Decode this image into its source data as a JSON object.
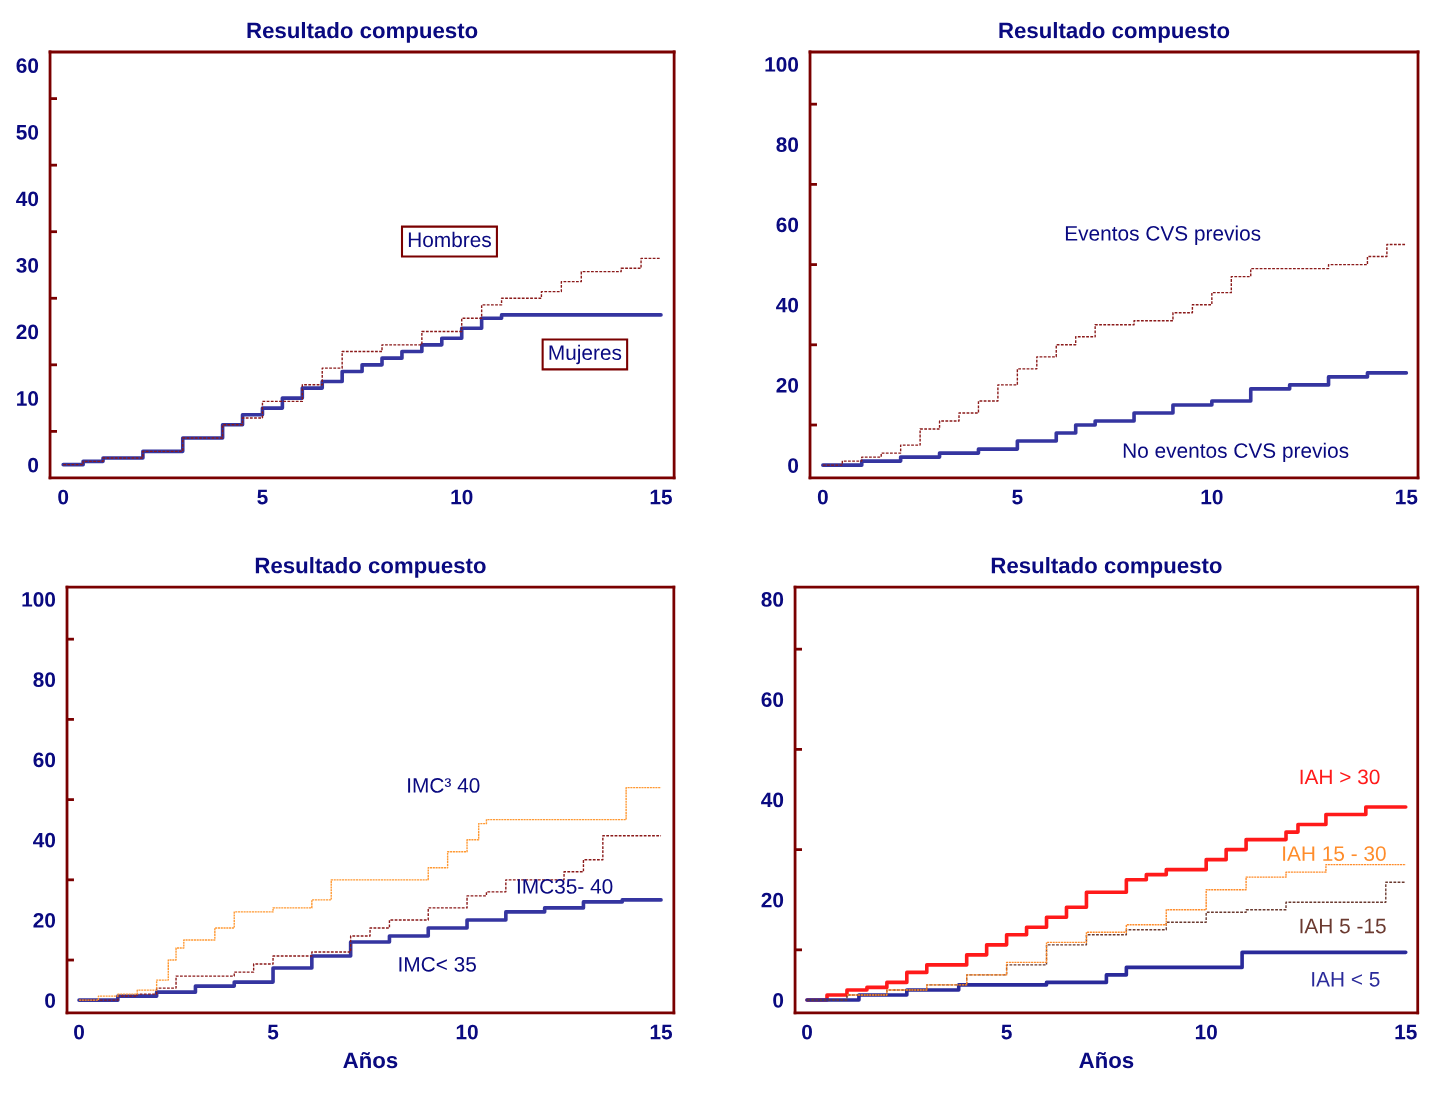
{
  "chart_data": [
    {
      "type": "step",
      "title": "Resultado compuesto",
      "xlim": [
        -0.33,
        15.33
      ],
      "xticks": [
        0,
        5,
        10,
        15
      ],
      "ylim": [
        -2,
        62
      ],
      "yticks": [
        0,
        {
          "value": 5,
          "label": null
        },
        10,
        {
          "value": 15,
          "label": null
        },
        20,
        {
          "value": 25,
          "label": null
        },
        30,
        {
          "value": 35,
          "label": null
        },
        40,
        {
          "value": 45,
          "label": null
        },
        50,
        {
          "value": 55,
          "label": null
        },
        60
      ],
      "series": [
        {
          "name": "Hombres",
          "color": "#8b1a1a",
          "line_style": "dashed",
          "x": [
            0,
            0.5,
            1,
            2,
            3,
            4,
            4.5,
            5,
            6,
            6.5,
            7,
            8,
            9,
            10,
            10.5,
            11,
            12,
            12.5,
            13,
            14,
            14.5,
            15
          ],
          "values": [
            0,
            0.5,
            1,
            2,
            4,
            6,
            7,
            9.5,
            12,
            14.5,
            17,
            18,
            20,
            22,
            24,
            25,
            26,
            27.5,
            29,
            29.5,
            31,
            31
          ]
        },
        {
          "name": "Mujeres",
          "color": "#3535a0",
          "line_style": "solid",
          "x": [
            0,
            0.5,
            1,
            2,
            3,
            4,
            4.5,
            5,
            5.5,
            6,
            6.5,
            7,
            7.5,
            8,
            8.5,
            9,
            9.5,
            10,
            10.5,
            11,
            15
          ],
          "values": [
            0,
            0.5,
            1,
            2,
            4,
            6,
            7.5,
            8.5,
            10,
            11.5,
            12.5,
            14,
            15,
            16,
            17,
            18,
            19,
            20.5,
            22,
            22.5,
            22.5
          ]
        }
      ]
    },
    {
      "type": "step",
      "title": "Resultado compuesto",
      "xlim": [
        -0.33,
        15.3
      ],
      "xticks": [
        0,
        5,
        10,
        15
      ],
      "ylim": [
        -3.2,
        103
      ],
      "yticks": [
        0,
        {
          "value": 10,
          "label": null
        },
        20,
        {
          "value": 30,
          "label": null
        },
        40,
        {
          "value": 50,
          "label": null
        },
        60,
        {
          "value": 70,
          "label": null
        },
        80,
        {
          "value": 90,
          "label": null
        },
        100
      ],
      "series": [
        {
          "name": "Eventos CVS previos",
          "color": "#8b1a1a",
          "line_style": "dashed",
          "x": [
            0,
            0.5,
            1,
            1.5,
            2,
            2.5,
            3,
            3.5,
            4,
            4.5,
            5,
            5.5,
            6,
            6.5,
            7,
            8,
            9,
            9.5,
            10,
            10.5,
            11,
            13,
            14,
            14.5,
            15
          ],
          "values": [
            0,
            1,
            2,
            3,
            5,
            9,
            11,
            13,
            16,
            20,
            24,
            27,
            30,
            32,
            35,
            36,
            38,
            40,
            43,
            47,
            49,
            50,
            52,
            55,
            55
          ]
        },
        {
          "name": "No eventos CVS previos",
          "color": "#3535a0",
          "line_style": "solid",
          "x": [
            0,
            1,
            2,
            3,
            4,
            5,
            6,
            6.5,
            7,
            8,
            9,
            10,
            11,
            12,
            13,
            14,
            15
          ],
          "values": [
            0,
            1,
            2,
            3,
            4,
            6,
            8,
            10,
            11,
            13,
            15,
            16,
            19,
            20,
            22,
            23,
            23
          ]
        }
      ]
    },
    {
      "type": "step",
      "title": "Resultado compuesto",
      "xlabel": "Años",
      "xlim": [
        -0.31,
        15.33
      ],
      "xticks": [
        0,
        5,
        10,
        15
      ],
      "ylim": [
        -3.2,
        103
      ],
      "yticks": [
        0,
        {
          "value": 10,
          "label": null
        },
        20,
        {
          "value": 30,
          "label": null
        },
        40,
        {
          "value": 50,
          "label": null
        },
        60,
        {
          "value": 70,
          "label": null
        },
        80,
        {
          "value": 90,
          "label": null
        },
        100
      ],
      "series": [
        {
          "name": "IMC³ 40",
          "color": "#ff9933",
          "line_style": "dotted",
          "x": [
            0,
            0.5,
            1,
            1.5,
            2,
            2.3,
            2.5,
            2.7,
            3,
            3.5,
            4,
            5,
            6,
            6.5,
            8,
            9,
            9.5,
            10,
            10.3,
            10.5,
            14,
            14.1,
            15
          ],
          "values": [
            0,
            1,
            1.5,
            2.5,
            5,
            10,
            13,
            15,
            15,
            18,
            22,
            23,
            25,
            30,
            30,
            33,
            37,
            40,
            44,
            45,
            45,
            53,
            53
          ]
        },
        {
          "name": "IMC35- 40",
          "color": "#8b1a1a",
          "line_style": "dashed",
          "x": [
            0,
            1,
            1.5,
            2,
            2.5,
            4,
            4.5,
            5,
            6,
            7,
            7.5,
            8,
            9,
            10,
            10.5,
            11,
            12,
            12.5,
            13,
            13.5,
            15
          ],
          "values": [
            0,
            1,
            1.5,
            3,
            6,
            7,
            9,
            11,
            12,
            16,
            18,
            20,
            23,
            26,
            27,
            30,
            30,
            32,
            35,
            41,
            41
          ]
        },
        {
          "name": "IMC< 35",
          "color": "#3535a0",
          "line_style": "solid",
          "x": [
            0,
            1,
            2,
            3,
            4,
            5,
            6,
            7,
            8,
            9,
            10,
            11,
            12,
            13,
            14,
            15
          ],
          "values": [
            0,
            1,
            2,
            3.5,
            4.5,
            8,
            11,
            14.5,
            16,
            18,
            20,
            22,
            23,
            24.5,
            25,
            25
          ]
        }
      ]
    },
    {
      "type": "step",
      "title": "Resultado compuesto",
      "xlabel": "Años",
      "xlim": [
        -0.3,
        15.3
      ],
      "xticks": [
        0,
        5,
        10,
        15
      ],
      "ylim": [
        -2.6,
        82.4
      ],
      "yticks": [
        0,
        {
          "value": 10,
          "label": null
        },
        20,
        {
          "value": 30,
          "label": null
        },
        40,
        {
          "value": 50,
          "label": null
        },
        60,
        {
          "value": 70,
          "label": null
        },
        80
      ],
      "series": [
        {
          "name": "IAH > 30",
          "color": "#ff1a1a",
          "line_style": "solid",
          "x": [
            0,
            0.5,
            1,
            1.5,
            2,
            2.5,
            3,
            4,
            4.5,
            5,
            5.5,
            6,
            6.5,
            7,
            8,
            8.5,
            9,
            10,
            10.5,
            11,
            12,
            12.3,
            13,
            14,
            15
          ],
          "values": [
            0,
            1,
            2,
            2.5,
            3.5,
            5.5,
            7,
            9,
            11,
            13,
            14.5,
            16.5,
            18.5,
            21.5,
            24,
            25,
            26,
            28,
            30,
            32,
            33.5,
            35,
            37,
            38.5,
            38.5
          ]
        },
        {
          "name": "IAH 15 - 30",
          "color": "#ff8c2a",
          "line_style": "dotted",
          "x": [
            1,
            2,
            3,
            4,
            5,
            6,
            7,
            8,
            9,
            10,
            11,
            12,
            13,
            15
          ],
          "values": [
            1,
            2,
            3,
            5,
            7.5,
            11.5,
            13.5,
            15,
            18,
            22,
            24.5,
            25.5,
            27,
            27
          ]
        },
        {
          "name": "IAH 5 -15",
          "color": "#6b3a30",
          "line_style": "dashed",
          "x": [
            0,
            1,
            2,
            3,
            4,
            5,
            6,
            7,
            8,
            9,
            10,
            11,
            12,
            14,
            14.5,
            15
          ],
          "values": [
            0,
            1,
            2,
            3,
            5,
            7,
            11,
            13,
            14,
            15.5,
            17.5,
            18,
            19.5,
            19.5,
            23.5,
            23.5
          ]
        },
        {
          "name": "IAH < 5",
          "color": "#2a2a9a",
          "line_style": "solid",
          "x": [
            0,
            1.3,
            2.5,
            3.8,
            6,
            7.5,
            8,
            10.8,
            10.9,
            15
          ],
          "values": [
            0,
            1,
            2,
            3,
            3.5,
            5,
            6.5,
            6.5,
            9.5,
            9.5
          ]
        }
      ]
    }
  ]
}
